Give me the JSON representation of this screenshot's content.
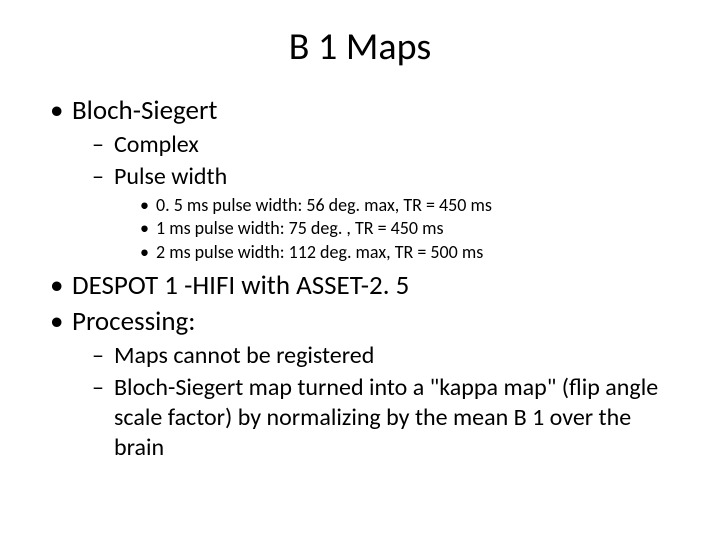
{
  "title": "B 1 Maps",
  "items": [
    {
      "text": "Bloch-Siegert",
      "children": [
        {
          "text": "Complex",
          "children": []
        },
        {
          "text": "Pulse width",
          "children": [
            {
              "text": "0. 5 ms pulse width: 56 deg. max, TR = 450 ms"
            },
            {
              "text": "1 ms pulse width: 75 deg. , TR = 450 ms"
            },
            {
              "text": "2 ms pulse width: 112 deg. max, TR = 500 ms"
            }
          ]
        }
      ]
    },
    {
      "text": "DESPOT 1 -HIFI with ASSET-2. 5",
      "children": []
    },
    {
      "text": "Processing:",
      "children": [
        {
          "text": "Maps cannot be registered",
          "children": []
        },
        {
          "text": "Bloch-Siegert map turned into a \"kappa map\" (flip angle scale factor) by normalizing by the mean B 1 over the brain",
          "children": []
        }
      ]
    }
  ]
}
